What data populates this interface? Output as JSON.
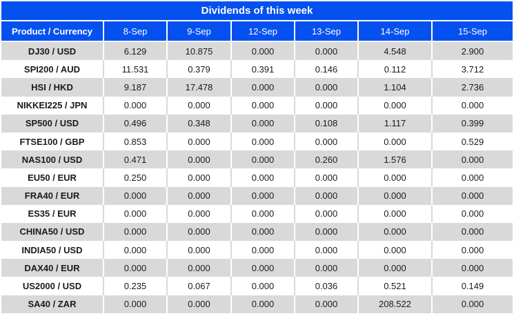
{
  "title": "Dividends of this week",
  "colors": {
    "header_bg": "#0551f0",
    "header_text": "#ffffff",
    "row_alt_bg": "#d9d9d9",
    "value_zero_text": "#1a1a1a",
    "value_nonzero_text": "#ee2c23"
  },
  "chart_data": {
    "type": "table",
    "title": "Dividends of this week",
    "columns": [
      "Product / Currency",
      "8-Sep",
      "9-Sep",
      "12-Sep",
      "13-Sep",
      "14-Sep",
      "15-Sep"
    ],
    "rows": [
      {
        "product": "DJ30 / USD",
        "values": [
          6.129,
          10.875,
          0.0,
          0.0,
          4.548,
          2.9
        ]
      },
      {
        "product": "SPI200 / AUD",
        "values": [
          11.531,
          0.379,
          0.391,
          0.146,
          0.112,
          3.712
        ]
      },
      {
        "product": "HSI / HKD",
        "values": [
          9.187,
          17.478,
          0.0,
          0.0,
          1.104,
          2.736
        ]
      },
      {
        "product": "NIKKEI225 / JPN",
        "values": [
          0.0,
          0.0,
          0.0,
          0.0,
          0.0,
          0.0
        ]
      },
      {
        "product": "SP500 / USD",
        "values": [
          0.496,
          0.348,
          0.0,
          0.108,
          1.117,
          0.399
        ]
      },
      {
        "product": "FTSE100 / GBP",
        "values": [
          0.853,
          0.0,
          0.0,
          0.0,
          0.0,
          0.529
        ]
      },
      {
        "product": "NAS100 / USD",
        "values": [
          0.471,
          0.0,
          0.0,
          0.26,
          1.576,
          0.0
        ]
      },
      {
        "product": "EU50 / EUR",
        "values": [
          0.25,
          0.0,
          0.0,
          0.0,
          0.0,
          0.0
        ]
      },
      {
        "product": "FRA40 / EUR",
        "values": [
          0.0,
          0.0,
          0.0,
          0.0,
          0.0,
          0.0
        ]
      },
      {
        "product": "ES35 / EUR",
        "values": [
          0.0,
          0.0,
          0.0,
          0.0,
          0.0,
          0.0
        ]
      },
      {
        "product": "CHINA50 / USD",
        "values": [
          0.0,
          0.0,
          0.0,
          0.0,
          0.0,
          0.0
        ]
      },
      {
        "product": "INDIA50 / USD",
        "values": [
          0.0,
          0.0,
          0.0,
          0.0,
          0.0,
          0.0
        ]
      },
      {
        "product": "DAX40 / EUR",
        "values": [
          0.0,
          0.0,
          0.0,
          0.0,
          0.0,
          0.0
        ]
      },
      {
        "product": "US2000 / USD",
        "values": [
          0.235,
          0.067,
          0.0,
          0.036,
          0.521,
          0.149
        ]
      },
      {
        "product": "SA40 / ZAR",
        "values": [
          0.0,
          0.0,
          0.0,
          0.0,
          208.522,
          0.0
        ]
      }
    ],
    "value_format": "3 decimals",
    "legend_position": "none",
    "grid": true
  }
}
